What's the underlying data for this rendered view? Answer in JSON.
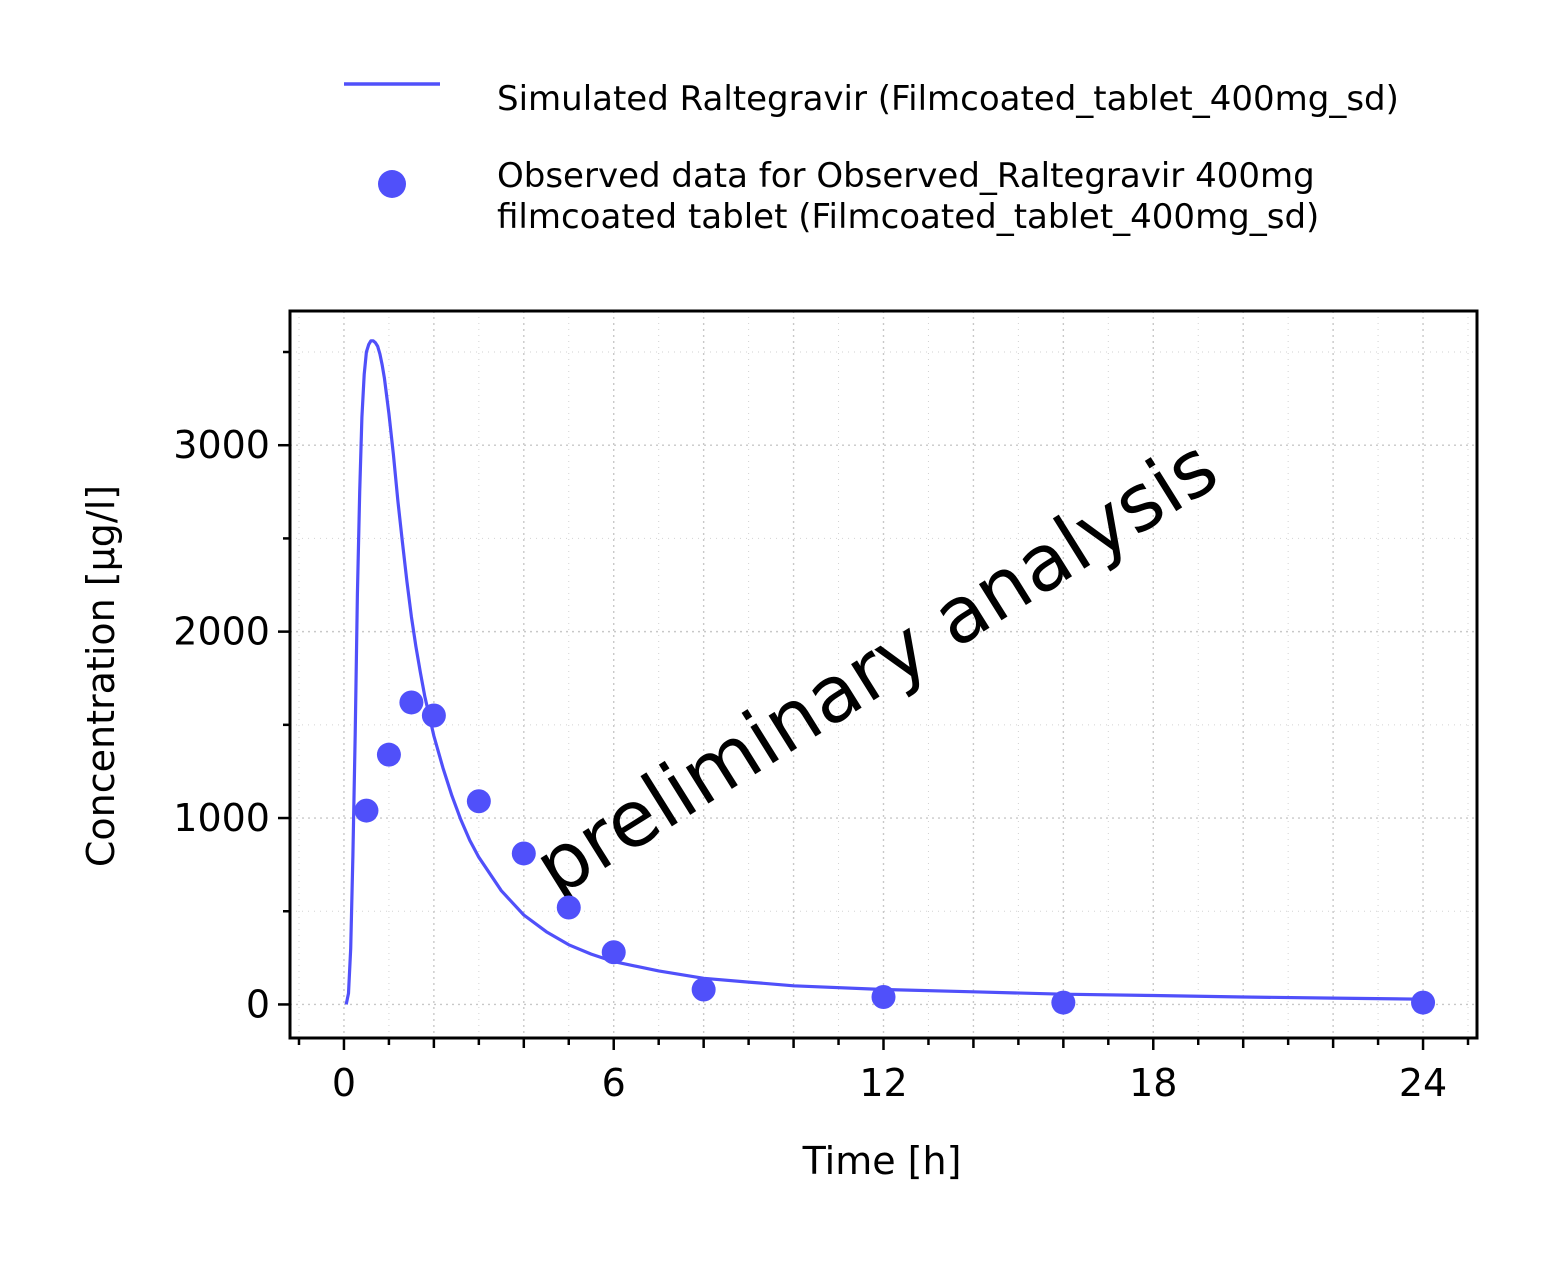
{
  "chart_data": {
    "type": "line",
    "title": "",
    "xlabel": "Time [h]",
    "ylabel": "Concentration [µg/l]",
    "xlim": [
      -1.2,
      25.2
    ],
    "ylim": [
      -180,
      3720
    ],
    "x_ticks": [
      0,
      6,
      12,
      18,
      24
    ],
    "y_ticks": [
      0,
      1000,
      2000,
      3000
    ],
    "x_tick_labels": [
      "0",
      "6",
      "12",
      "18",
      "24"
    ],
    "y_tick_labels": [
      "0",
      "1000",
      "2000",
      "3000"
    ],
    "grid": true,
    "legend_position": "top",
    "watermark": "preliminary analysis",
    "colors": {
      "series": "#5050fa",
      "grid": "#c8c8c8",
      "watermark": "#c8c8c8"
    },
    "series": [
      {
        "name": "Simulated Raltegravir (Filmcoated_tablet_400mg_sd)",
        "kind": "line",
        "x": [
          0.05,
          0.1,
          0.15,
          0.2,
          0.25,
          0.3,
          0.35,
          0.4,
          0.45,
          0.5,
          0.55,
          0.6,
          0.65,
          0.7,
          0.75,
          0.8,
          0.85,
          0.9,
          1.0,
          1.1,
          1.2,
          1.3,
          1.4,
          1.5,
          1.6,
          1.7,
          1.8,
          2.0,
          2.2,
          2.4,
          2.6,
          2.8,
          3.0,
          3.5,
          4.0,
          4.5,
          5.0,
          5.5,
          6.0,
          7.0,
          8.0,
          9.0,
          10.0,
          12.0,
          14.0,
          16.0,
          18.0,
          20.0,
          22.0,
          24.0
        ],
        "values": [
          0,
          60,
          300,
          800,
          1450,
          2200,
          2750,
          3150,
          3380,
          3500,
          3540,
          3560,
          3560,
          3550,
          3530,
          3490,
          3430,
          3360,
          3170,
          2950,
          2700,
          2480,
          2270,
          2080,
          1920,
          1780,
          1650,
          1440,
          1270,
          1120,
          990,
          880,
          790,
          610,
          480,
          390,
          320,
          270,
          230,
          180,
          140,
          120,
          100,
          80,
          68,
          55,
          48,
          40,
          34,
          28
        ]
      },
      {
        "name": "Observed data for Observed_Raltegravir 400mg filmcoated tablet (Filmcoated_tablet_400mg_sd)",
        "kind": "scatter",
        "x": [
          0.5,
          1.0,
          1.5,
          2.0,
          3.0,
          4.0,
          5.0,
          6.0,
          8.0,
          12.0,
          16.0,
          24.0
        ],
        "values": [
          1040,
          1340,
          1620,
          1550,
          1090,
          810,
          520,
          280,
          80,
          40,
          10,
          10
        ]
      }
    ],
    "legend_labels": [
      [
        "Simulated Raltegravir (Filmcoated_tablet_400mg_sd)"
      ],
      [
        "Observed data for Observed_Raltegravir 400mg",
        "filmcoated tablet (Filmcoated_tablet_400mg_sd)"
      ]
    ]
  }
}
